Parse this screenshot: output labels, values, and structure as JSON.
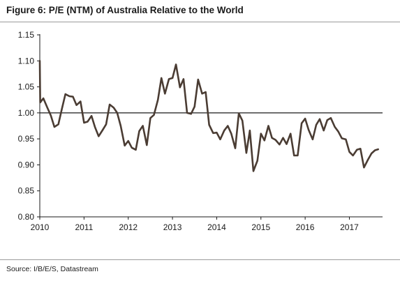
{
  "figure": {
    "title": "Figure 6: P/E (NTM) of Australia Relative to the World",
    "source": "Source: I/B/E/S, Datastream"
  },
  "colors": {
    "line": "#4a3c33",
    "axis": "#1a1a1a",
    "rule": "#9a9a9a"
  },
  "chart_data": {
    "type": "line",
    "title": "P/E (NTM) of Australia Relative to the World",
    "xlabel": "",
    "ylabel": "",
    "xlim": [
      2010.0,
      2017.75
    ],
    "ylim": [
      0.8,
      1.15
    ],
    "y_ticks": [
      "0.80",
      "0.85",
      "0.90",
      "0.95",
      "1.00",
      "1.05",
      "1.10",
      "1.15"
    ],
    "x_ticks": [
      "2010",
      "2011",
      "2012",
      "2013",
      "2014",
      "2015",
      "2016",
      "2017"
    ],
    "reference_line": 1.0,
    "grid": false,
    "legend": "none",
    "series": [
      {
        "points": [
          [
            2010.0,
            1.1
          ],
          [
            2010.01,
            1.02
          ],
          [
            2010.08,
            1.028
          ],
          [
            2010.17,
            1.01
          ],
          [
            2010.25,
            0.995
          ],
          [
            2010.33,
            0.973
          ],
          [
            2010.42,
            0.978
          ],
          [
            2010.5,
            1.008
          ],
          [
            2010.58,
            1.036
          ],
          [
            2010.67,
            1.032
          ],
          [
            2010.75,
            1.031
          ],
          [
            2010.83,
            1.015
          ],
          [
            2010.92,
            1.022
          ],
          [
            2011.0,
            0.981
          ],
          [
            2011.08,
            0.983
          ],
          [
            2011.17,
            0.994
          ],
          [
            2011.25,
            0.972
          ],
          [
            2011.33,
            0.955
          ],
          [
            2011.42,
            0.967
          ],
          [
            2011.5,
            0.978
          ],
          [
            2011.58,
            1.016
          ],
          [
            2011.67,
            1.01
          ],
          [
            2011.75,
            1.0
          ],
          [
            2011.83,
            0.975
          ],
          [
            2011.92,
            0.937
          ],
          [
            2012.0,
            0.946
          ],
          [
            2012.08,
            0.933
          ],
          [
            2012.17,
            0.929
          ],
          [
            2012.25,
            0.965
          ],
          [
            2012.33,
            0.975
          ],
          [
            2012.42,
            0.938
          ],
          [
            2012.5,
            0.99
          ],
          [
            2012.58,
            0.996
          ],
          [
            2012.67,
            1.025
          ],
          [
            2012.75,
            1.067
          ],
          [
            2012.83,
            1.037
          ],
          [
            2012.92,
            1.065
          ],
          [
            2013.0,
            1.067
          ],
          [
            2013.08,
            1.093
          ],
          [
            2013.17,
            1.049
          ],
          [
            2013.25,
            1.065
          ],
          [
            2013.33,
            1.0
          ],
          [
            2013.42,
            0.998
          ],
          [
            2013.5,
            1.012
          ],
          [
            2013.58,
            1.064
          ],
          [
            2013.67,
            1.037
          ],
          [
            2013.75,
            1.04
          ],
          [
            2013.83,
            0.977
          ],
          [
            2013.92,
            0.961
          ],
          [
            2014.0,
            0.962
          ],
          [
            2014.08,
            0.949
          ],
          [
            2014.17,
            0.966
          ],
          [
            2014.25,
            0.975
          ],
          [
            2014.33,
            0.96
          ],
          [
            2014.42,
            0.932
          ],
          [
            2014.5,
            0.999
          ],
          [
            2014.58,
            0.985
          ],
          [
            2014.67,
            0.923
          ],
          [
            2014.75,
            0.966
          ],
          [
            2014.83,
            0.888
          ],
          [
            2014.92,
            0.908
          ],
          [
            2015.0,
            0.96
          ],
          [
            2015.08,
            0.947
          ],
          [
            2015.17,
            0.975
          ],
          [
            2015.25,
            0.952
          ],
          [
            2015.33,
            0.948
          ],
          [
            2015.42,
            0.939
          ],
          [
            2015.5,
            0.952
          ],
          [
            2015.58,
            0.94
          ],
          [
            2015.67,
            0.96
          ],
          [
            2015.75,
            0.918
          ],
          [
            2015.83,
            0.918
          ],
          [
            2015.92,
            0.98
          ],
          [
            2016.0,
            0.989
          ],
          [
            2016.08,
            0.967
          ],
          [
            2016.17,
            0.949
          ],
          [
            2016.25,
            0.977
          ],
          [
            2016.33,
            0.988
          ],
          [
            2016.42,
            0.966
          ],
          [
            2016.5,
            0.986
          ],
          [
            2016.58,
            0.99
          ],
          [
            2016.67,
            0.973
          ],
          [
            2016.75,
            0.964
          ],
          [
            2016.83,
            0.951
          ],
          [
            2016.92,
            0.949
          ],
          [
            2017.0,
            0.925
          ],
          [
            2017.08,
            0.918
          ],
          [
            2017.17,
            0.929
          ],
          [
            2017.25,
            0.931
          ],
          [
            2017.33,
            0.895
          ],
          [
            2017.42,
            0.91
          ],
          [
            2017.5,
            0.922
          ],
          [
            2017.58,
            0.928
          ],
          [
            2017.65,
            0.93
          ]
        ]
      }
    ]
  }
}
